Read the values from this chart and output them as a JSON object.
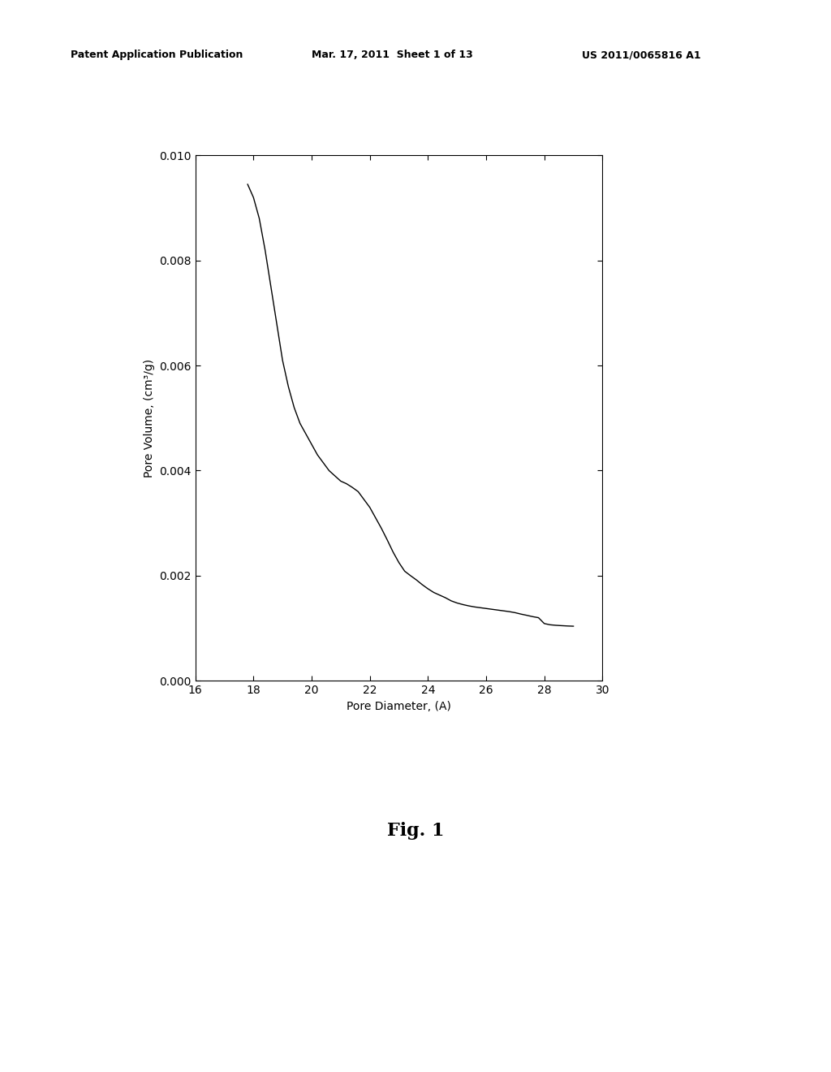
{
  "header_left": "Patent Application Publication",
  "header_mid": "Mar. 17, 2011  Sheet 1 of 13",
  "header_right": "US 2011/0065816 A1",
  "xlabel": "Pore Diameter, (A)",
  "ylabel": "Pore Volume, (cm³/g)",
  "fig_label": "Fig. 1",
  "xlim": [
    16,
    30
  ],
  "ylim": [
    0.0,
    0.01
  ],
  "xticks": [
    16,
    18,
    20,
    22,
    24,
    26,
    28,
    30
  ],
  "yticks": [
    0.0,
    0.002,
    0.004,
    0.006,
    0.008,
    0.01
  ],
  "line_color": "#000000",
  "bg_color": "#ffffff",
  "x_data": [
    17.8,
    18.0,
    18.2,
    18.4,
    18.6,
    18.8,
    19.0,
    19.2,
    19.4,
    19.6,
    19.8,
    20.0,
    20.2,
    20.4,
    20.6,
    20.8,
    21.0,
    21.2,
    21.4,
    21.6,
    21.8,
    22.0,
    22.2,
    22.4,
    22.6,
    22.8,
    23.0,
    23.2,
    23.4,
    23.6,
    23.8,
    24.0,
    24.2,
    24.4,
    24.6,
    24.8,
    25.0,
    25.2,
    25.4,
    25.6,
    25.8,
    26.0,
    26.2,
    26.4,
    26.6,
    26.8,
    27.0,
    27.2,
    27.4,
    27.6,
    27.8,
    28.0,
    28.2,
    28.4,
    28.6,
    28.8,
    29.0
  ],
  "y_data": [
    0.00945,
    0.0092,
    0.0088,
    0.0082,
    0.0075,
    0.0068,
    0.0061,
    0.0056,
    0.0052,
    0.0049,
    0.0047,
    0.0045,
    0.0043,
    0.00415,
    0.004,
    0.0039,
    0.0038,
    0.00375,
    0.00368,
    0.0036,
    0.00345,
    0.0033,
    0.0031,
    0.0029,
    0.00268,
    0.00245,
    0.00225,
    0.002085,
    0.002,
    0.00192,
    0.00183,
    0.00175,
    0.00168,
    0.00163,
    0.00158,
    0.00152,
    0.00148,
    0.00145,
    0.001425,
    0.001405,
    0.00139,
    0.001375,
    0.00136,
    0.001345,
    0.00133,
    0.001315,
    0.001295,
    0.001268,
    0.001245,
    0.00122,
    0.0012,
    0.001088,
    0.001065,
    0.001055,
    0.001048,
    0.001042,
    0.001038
  ],
  "header_fontsize": 9,
  "axis_fontsize": 10,
  "fig_label_fontsize": 16
}
